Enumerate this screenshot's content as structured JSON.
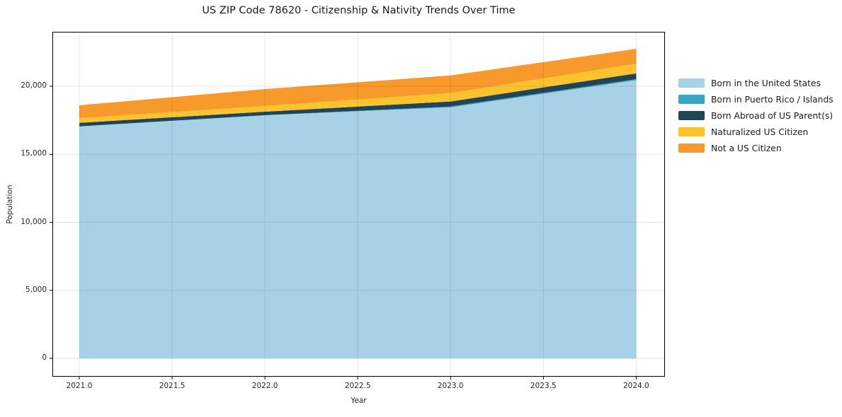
{
  "title": "US ZIP Code 78620 - Citizenship & Nativity Trends Over Time",
  "chart_data": {
    "type": "area",
    "stacked": true,
    "title": "US ZIP Code 78620 - Citizenship & Nativity Trends Over Time",
    "x": [
      2021,
      2022,
      2023,
      2024
    ],
    "series": [
      {
        "name": "Born in the United States",
        "color": "#a7d1e6",
        "values": [
          17050,
          17870,
          18450,
          20440
        ]
      },
      {
        "name": "Born in Puerto Rico / Islands",
        "color": "#3ba4c4",
        "values": [
          0,
          0,
          60,
          80
        ]
      },
      {
        "name": "Born Abroad of US Parent(s)",
        "color": "#1f4656",
        "values": [
          260,
          260,
          370,
          420
        ]
      },
      {
        "name": "Naturalized US Citizen",
        "color": "#fcc32e",
        "values": [
          350,
          420,
          620,
          720
        ]
      },
      {
        "name": "Not a US Citizen",
        "color": "#f8992b",
        "values": [
          940,
          1240,
          1290,
          1090
        ]
      }
    ],
    "xlabel": "Year",
    "ylabel": "Population",
    "xlim": [
      2020.855,
      2024.155
    ],
    "ylim": [
      -1350,
      24000
    ],
    "xticks": {
      "values": [
        2021,
        2021.5,
        2022,
        2022.5,
        2023,
        2023.5,
        2024
      ],
      "labels": [
        "2021.0",
        "2021.5",
        "2022.0",
        "2022.5",
        "2023.0",
        "2023.5",
        "2024.0"
      ]
    },
    "yticks": {
      "values": [
        0,
        5000,
        10000,
        15000,
        20000
      ],
      "labels": [
        "0",
        "5,000",
        "10,000",
        "15,000",
        "20,000"
      ]
    },
    "grid": true,
    "legend_position": "right"
  },
  "style": {
    "grid_color": "rgba(0,0,0,0.10)",
    "spine_color": "#000000",
    "tick_color": "#262626",
    "background": "#ffffff"
  }
}
